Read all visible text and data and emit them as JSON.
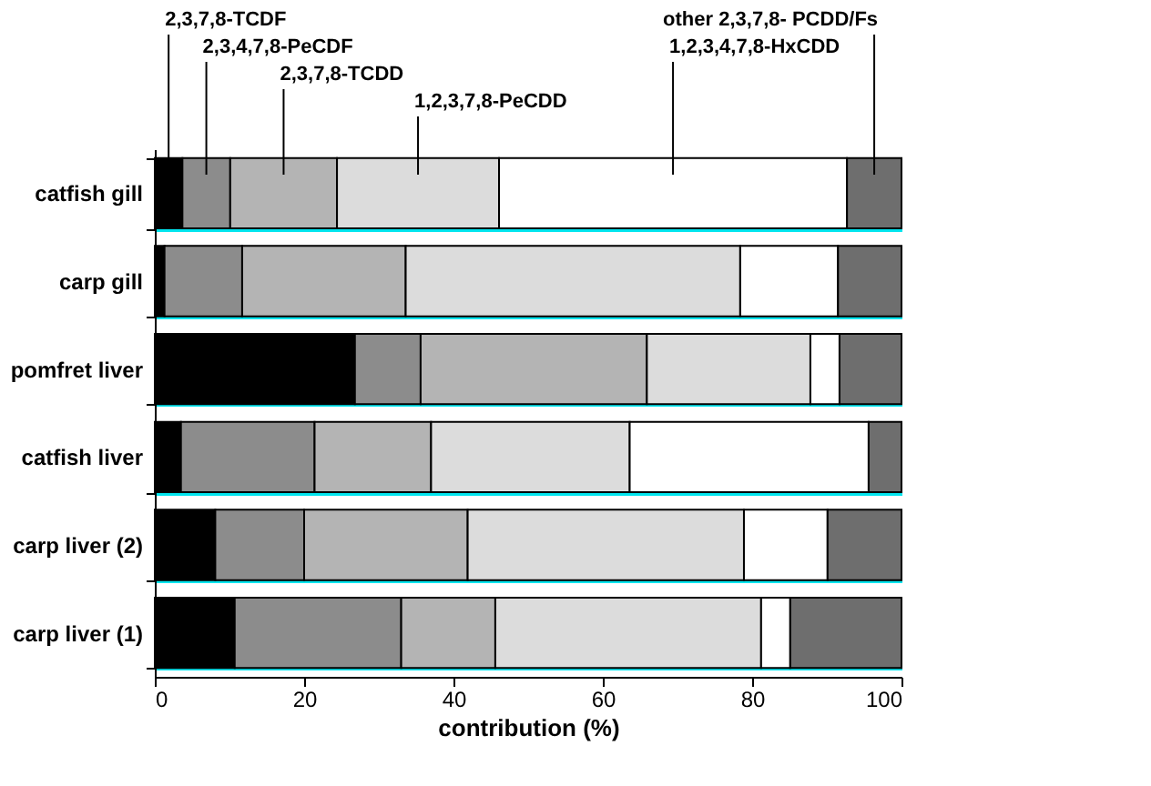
{
  "chart_data": {
    "type": "bar",
    "orientation": "horizontal",
    "stacked": true,
    "xlabel": "contribution (%)",
    "categories": [
      "catfish gill",
      "carp gill",
      "pomfret liver",
      "catfish liver",
      "carp liver (2)",
      "carp liver (1)"
    ],
    "series": [
      {
        "name": "2,3,7,8-TCDF",
        "color": "#000000",
        "values": [
          3.7,
          1.3,
          26.8,
          3.5,
          8.1,
          10.7
        ]
      },
      {
        "name": "2,3,4,7,8-PeCDF",
        "color": "#8c8c8c",
        "values": [
          6.4,
          10.4,
          8.8,
          17.9,
          11.9,
          22.3
        ]
      },
      {
        "name": "2,3,7,8-TCDD",
        "color": "#b4b4b4",
        "values": [
          14.3,
          21.9,
          30.3,
          15.6,
          21.9,
          12.6
        ]
      },
      {
        "name": "1,2,3,7,8-PeCDD",
        "color": "#dcdcdc",
        "values": [
          21.7,
          44.8,
          21.9,
          26.6,
          37.0,
          35.6
        ]
      },
      {
        "name": "1,2,3,4,7,8-HxCDD",
        "color": "#ffffff",
        "values": [
          46.6,
          13.1,
          3.9,
          32.0,
          11.2,
          3.9
        ]
      },
      {
        "name": "other 2,3,7,8- PCDD/Fs",
        "color": "#6e6e6e",
        "values": [
          7.3,
          8.5,
          8.3,
          4.4,
          9.9,
          14.9
        ]
      }
    ],
    "xlim": [
      0,
      100
    ],
    "xticks": [
      0,
      20,
      40,
      60,
      80,
      100
    ],
    "grid": "y",
    "legend": false
  }
}
